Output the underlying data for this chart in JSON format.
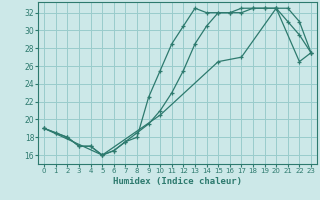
{
  "xlabel": "Humidex (Indice chaleur)",
  "bg_color": "#cce8e8",
  "grid_color": "#99cccc",
  "line_color": "#2d7a6e",
  "xlim": [
    -0.5,
    23.5
  ],
  "ylim": [
    15.0,
    33.2
  ],
  "xticks": [
    0,
    1,
    2,
    3,
    4,
    5,
    6,
    7,
    8,
    9,
    10,
    11,
    12,
    13,
    14,
    15,
    16,
    17,
    18,
    19,
    20,
    21,
    22,
    23
  ],
  "yticks": [
    16,
    18,
    20,
    22,
    24,
    26,
    28,
    30,
    32
  ],
  "line1_x": [
    0,
    1,
    2,
    3,
    4,
    5,
    6,
    7,
    8,
    9,
    10,
    11,
    12,
    13,
    14,
    15,
    16,
    17,
    18,
    19,
    20,
    21,
    22,
    23
  ],
  "line1_y": [
    19.0,
    18.5,
    18.0,
    17.0,
    17.0,
    16.0,
    16.5,
    17.5,
    18.0,
    22.5,
    25.5,
    28.5,
    30.5,
    32.5,
    32.0,
    32.0,
    32.0,
    32.5,
    32.5,
    32.5,
    32.5,
    31.0,
    29.5,
    27.5
  ],
  "line2_x": [
    0,
    1,
    2,
    3,
    4,
    5,
    6,
    7,
    8,
    9,
    10,
    11,
    12,
    13,
    14,
    15,
    16,
    17,
    18,
    19,
    20,
    21,
    22,
    23
  ],
  "line2_y": [
    19.0,
    18.5,
    18.0,
    17.0,
    17.0,
    16.0,
    16.5,
    17.5,
    18.5,
    19.5,
    21.0,
    23.0,
    25.5,
    28.5,
    30.5,
    32.0,
    32.0,
    32.0,
    32.5,
    32.5,
    32.5,
    32.5,
    31.0,
    27.5
  ],
  "line3_x": [
    0,
    5,
    10,
    15,
    17,
    20,
    22,
    23
  ],
  "line3_y": [
    19.0,
    16.0,
    20.5,
    26.5,
    27.0,
    32.5,
    26.5,
    27.5
  ]
}
